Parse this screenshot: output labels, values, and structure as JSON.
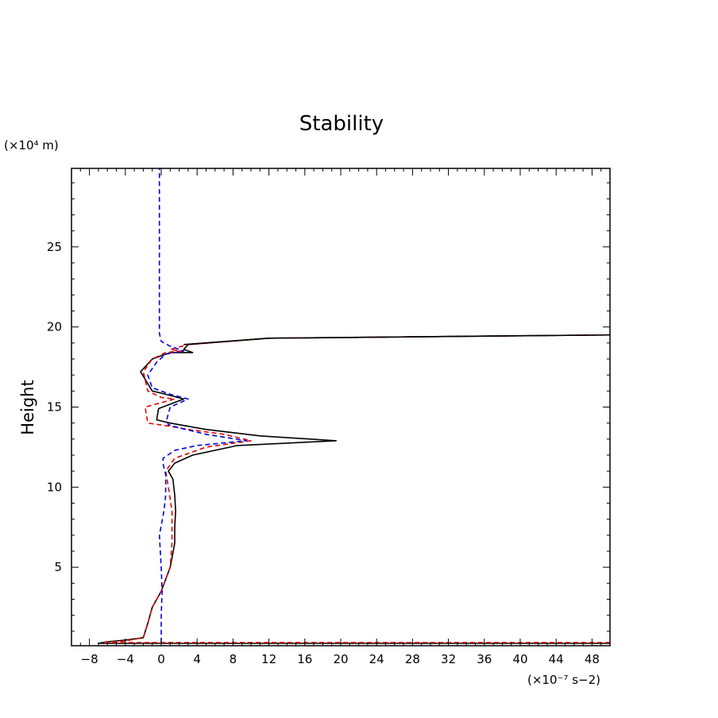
{
  "chart_data": {
    "type": "line",
    "title": "Stability",
    "ylabel": "Height",
    "yunit": "(×10⁴ m)",
    "xunit": "(×10⁻⁷ s−2)",
    "xlim": [
      -10,
      50
    ],
    "ylim": [
      0.1,
      29.9
    ],
    "xticks": [
      -8,
      -4,
      0,
      4,
      8,
      12,
      16,
      20,
      24,
      28,
      32,
      36,
      40,
      44,
      48
    ],
    "xtick_labels": [
      "−8",
      "−4",
      "0",
      "4",
      "8",
      "12",
      "16",
      "20",
      "24",
      "28",
      "32",
      "36",
      "40",
      "44",
      "48"
    ],
    "yticks": [
      5,
      10,
      15,
      20,
      25
    ],
    "ytick_labels": [
      "5",
      "10",
      "15",
      "20",
      "25"
    ],
    "grid": false,
    "series": [
      {
        "color": "#000000",
        "dash": "solid",
        "x": [
          50,
          -7,
          -6,
          -4,
          -2,
          -1.5,
          -1,
          0,
          1,
          1.5,
          1.5,
          1.6,
          1.5,
          1.3,
          0.8,
          1.5,
          3.5,
          8.5,
          19.5,
          11,
          5,
          3,
          1,
          -0.5,
          -0.3,
          2.5,
          0.5,
          -1,
          -2.3,
          -1,
          1,
          3.5,
          2.5,
          3,
          12,
          50
        ],
        "y": [
          0.25,
          0.25,
          0.35,
          0.45,
          0.6,
          1.5,
          2.5,
          3.5,
          5,
          6.5,
          7.5,
          8.5,
          9.5,
          10.5,
          11,
          11.5,
          12,
          12.6,
          12.9,
          13.2,
          13.6,
          13.8,
          14,
          14.2,
          14.9,
          15.5,
          15.8,
          16,
          17.2,
          18,
          18.4,
          18.4,
          18.6,
          18.9,
          19.3,
          19.5
        ]
      },
      {
        "color": "#e00000",
        "dash": "dashed",
        "x": [
          50,
          -6.5,
          -4,
          -2,
          -1.5,
          -1,
          0,
          1,
          1.2,
          1.2,
          1.2,
          0.8,
          0.5,
          1.5,
          5,
          10,
          7,
          3,
          1,
          -1.5,
          -1.8,
          1.5,
          0,
          -1.5,
          -2,
          -1,
          0.5,
          2.2,
          1,
          3,
          12,
          50
        ],
        "y": [
          0.3,
          0.3,
          0.4,
          0.6,
          1.5,
          2.5,
          3.5,
          5,
          6.5,
          7.5,
          8.5,
          10,
          11,
          11.8,
          12.5,
          12.9,
          13.3,
          13.6,
          13.8,
          14,
          15,
          15.5,
          15.6,
          16,
          17.2,
          18,
          18.4,
          18.5,
          18.6,
          18.9,
          19.3,
          19.5
        ]
      },
      {
        "color": "#0000e0",
        "dash": "dashed",
        "x": [
          0,
          0,
          0.1,
          0,
          -0.2,
          0.3,
          0.5,
          0.5,
          0.5,
          0.3,
          0.2,
          0.2,
          1.5,
          4,
          9.5,
          5,
          2,
          0.8,
          0.6,
          1,
          3,
          1,
          -1,
          -1.5,
          -0.5,
          0.5,
          2.5,
          1,
          0,
          -0.2,
          -0.2
        ],
        "y": [
          0.3,
          2,
          3.5,
          5,
          7,
          8.5,
          9.5,
          10.3,
          10.8,
          11.2,
          11.5,
          11.8,
          12.3,
          12.6,
          12.9,
          13.3,
          13.7,
          13.9,
          14.2,
          15,
          15.5,
          15.8,
          16.2,
          17,
          17.8,
          18.3,
          18.5,
          18.8,
          19.1,
          19.6,
          29.9
        ]
      },
      {
        "color": "#000000",
        "dash": "solid",
        "x": [
          2.5,
          12,
          50
        ],
        "y": [
          18.9,
          19.3,
          19.5
        ]
      }
    ]
  }
}
